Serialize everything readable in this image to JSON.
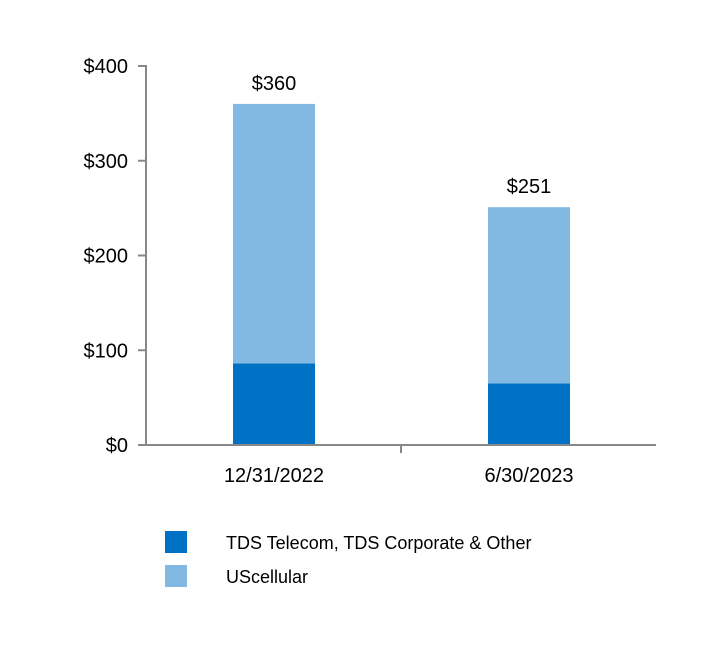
{
  "chart_data": {
    "type": "bar",
    "stacked": true,
    "categories": [
      "12/31/2022",
      "6/30/2023"
    ],
    "series": [
      {
        "name": "TDS Telecom, TDS Corporate & Other",
        "values": [
          86,
          65
        ],
        "color": "#0072c6"
      },
      {
        "name": "UScellular",
        "values": [
          274,
          186
        ],
        "color": "#81b9e3"
      }
    ],
    "totals": [
      360,
      251
    ],
    "total_labels": [
      "$360",
      "$251"
    ],
    "y_ticks": [
      0,
      100,
      200,
      300,
      400
    ],
    "y_tick_labels": [
      "$0",
      "$100",
      "$200",
      "$300",
      "$400"
    ],
    "ylim": [
      0,
      400
    ],
    "grid": false,
    "legend_position": "bottom"
  }
}
